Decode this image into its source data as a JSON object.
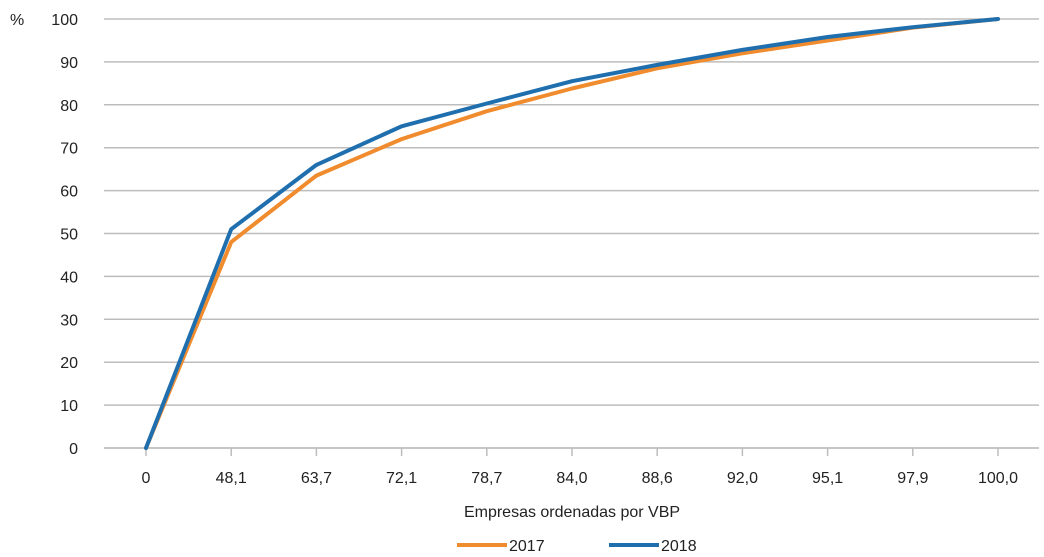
{
  "chart_data": {
    "type": "line",
    "title": "",
    "xlabel": "Empresas ordenadas por VBP",
    "ylabel": "%",
    "ylim": [
      0,
      100
    ],
    "yticks": [
      "0",
      "10",
      "20",
      "30",
      "40",
      "50",
      "60",
      "70",
      "80",
      "90",
      "100"
    ],
    "categories": [
      "0",
      "48,1",
      "63,7",
      "72,1",
      "78,7",
      "84,0",
      "88,6",
      "92,0",
      "95,1",
      "97,9",
      "100,0"
    ],
    "grid": "horizontal",
    "legend_position": "bottom",
    "series": [
      {
        "name": "2017",
        "color": "#F08C2E",
        "values": [
          0,
          48,
          63.5,
          72,
          78.5,
          83.8,
          88.5,
          92,
          95,
          98,
          100
        ]
      },
      {
        "name": "2018",
        "color": "#1F6FAF",
        "values": [
          0,
          51,
          66,
          75,
          80.3,
          85.5,
          89.3,
          92.8,
          95.8,
          98.1,
          100
        ]
      }
    ]
  }
}
